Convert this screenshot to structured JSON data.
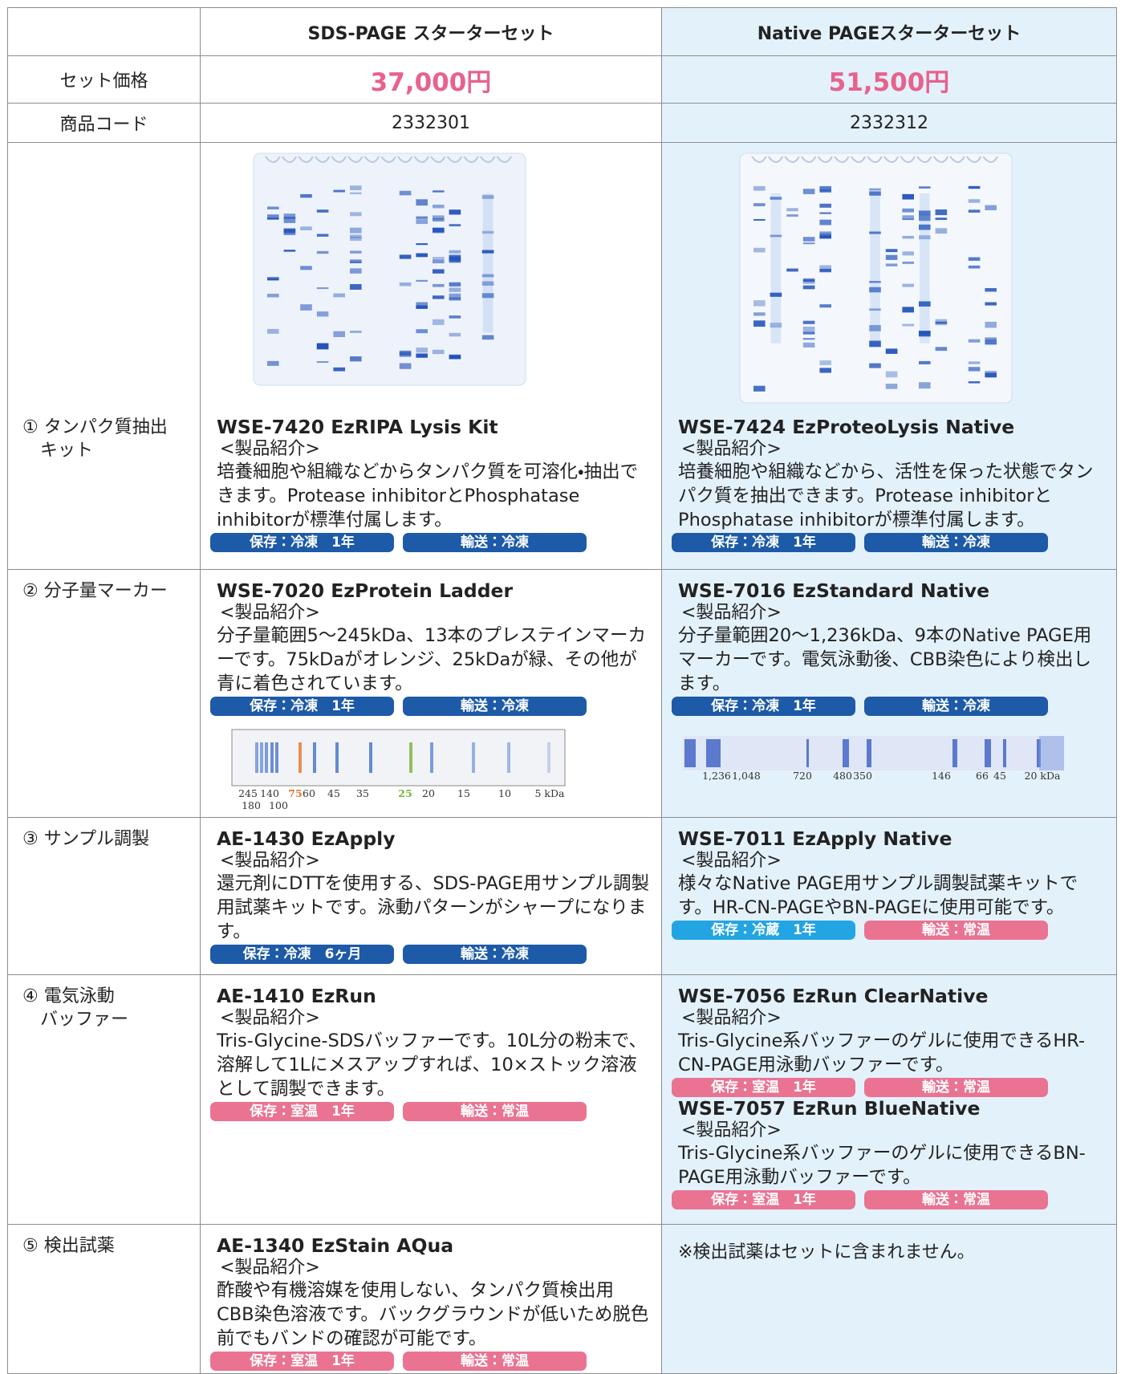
{
  "header": {
    "sds": "SDS-PAGE スターターセット",
    "native": "Native PAGEスターターセット"
  },
  "price": {
    "label": "セット価格",
    "sds": "37,000円",
    "native": "51,500円"
  },
  "code": {
    "label": "商品コード",
    "sds": "2332301",
    "native": "2332312"
  },
  "rows": [
    {
      "label": [
        "① タンパク質抽出",
        "キット"
      ],
      "sds": [
        {
          "name": "WSE-7420 EzRIPA Lysis Kit",
          "intro": "<製品紹介>",
          "desc": "培養細胞や組織などからタンパク質を可溶化・抽出できます。Protease inhibitorとPhosphatase inhibitorが標準付属します。",
          "storage": "保存：冷凍　1年",
          "shipping": "輸送：冷凍"
        }
      ],
      "native": [
        {
          "name": "WSE-7424 EzProteoLysis Native",
          "intro": "<製品紹介>",
          "desc": "培養細胞や組織などから、活性を保った状態でタンパク質を抽出できます。Protease inhibitorとPhosphatase inhibitorが標準付属します。",
          "storage": "保存：冷凍　1年",
          "shipping": "輸送：冷凍"
        }
      ]
    },
    {
      "label": [
        "② 分子量マーカー"
      ],
      "sds": [
        {
          "name": "WSE-7020 EzProtein Ladder",
          "intro": "<製品紹介>",
          "desc": "分子量範囲5～245kDa、13本のプレステインマーカーです。75kDaがオレンジ、25kDaが緑、その他が青に着色されています。",
          "storage": "保存：冷凍　1年",
          "shipping": "輸送：冷凍"
        }
      ],
      "native": [
        {
          "name": "WSE-7016 EzStandard Native",
          "intro": "<製品紹介>",
          "desc": "分子量範囲20～1,236kDa、9本のNative PAGE用マーカーです。電気泳動後、CBB染色により検出します。",
          "storage": "保存：冷凍　1年",
          "shipping": "輸送：冷凍"
        }
      ]
    },
    {
      "label": [
        "③ サンプル調製"
      ],
      "sds": [
        {
          "name": "AE-1430 EzApply",
          "intro": "<製品紹介>",
          "desc": "還元剤にDTTを使用する、SDS-PAGE用サンプル調製用試薬キットです。泳動パターンがシャープになります。",
          "storage": "保存：冷凍　6ヶ月",
          "shipping": "輸送：冷凍"
        }
      ],
      "native": [
        {
          "name": "WSE-7011 EzApply Native",
          "intro": "<製品紹介>",
          "desc": "様々なNative PAGE用サンプル調製試薬キットです。HR-CN-PAGEやBN-PAGEに使用可能です。",
          "storage": "保存：冷蔵　1年",
          "shipping": "輸送：常温"
        }
      ]
    },
    {
      "label": [
        "④ 電気泳動",
        "バッファー"
      ],
      "sds": [
        {
          "name": "AE-1410 EzRun",
          "intro": "<製品紹介>",
          "desc": "Tris-Glycine-SDSバッファーです。10L分の粉末で、溶解して1Lにメスアップすれば、10×ストック溶液として調製できます。",
          "storage": "保存：室温　1年",
          "shipping": "輸送：常温"
        }
      ],
      "native": [
        {
          "name": "WSE-7056 EzRun ClearNative",
          "intro": "<製品紹介>",
          "desc": "Tris-Glycine系バッファーのゲルに使用できるHR-CN-PAGE用泳動バッファーです。",
          "storage": "保存：室温　1年",
          "shipping": "輸送：常温"
        },
        {
          "name": "WSE-7057 EzRun BlueNative",
          "intro": "<製品紹介>",
          "desc": "Tris-Glycine系バッファーのゲルに使用できるBN-PAGE用泳動バッファーです。",
          "storage": "保存：室温　1年",
          "shipping": "輸送：常温"
        }
      ]
    },
    {
      "label": [
        "⑤ 検出試薬"
      ],
      "sds": [
        {
          "name": "AE-1340 EzStain AQua",
          "intro": "<製品紹介>",
          "desc": "酢酸や有機溶媒を使用しない、タンパク質検出用CBB染色溶液です。バックグラウンドが低いため脱色前でもバンドの確認が可能です。",
          "storage": "保存：室温　1年",
          "shipping": "輸送：常温"
        }
      ],
      "native": [],
      "native_note": "※検出試薬はセットに含まれません。"
    }
  ],
  "sds_marker": {
    "labels": [
      "245",
      "140",
      "75",
      "60",
      "45",
      "35",
      "25",
      "20",
      "15",
      "10",
      "5 kDa"
    ],
    "labels_2": [
      "180",
      "100"
    ]
  },
  "native_marker": {
    "labels": [
      "1,236",
      "1,048",
      "720",
      "480",
      "350",
      "146",
      "66",
      "45",
      "20 kDa"
    ]
  }
}
